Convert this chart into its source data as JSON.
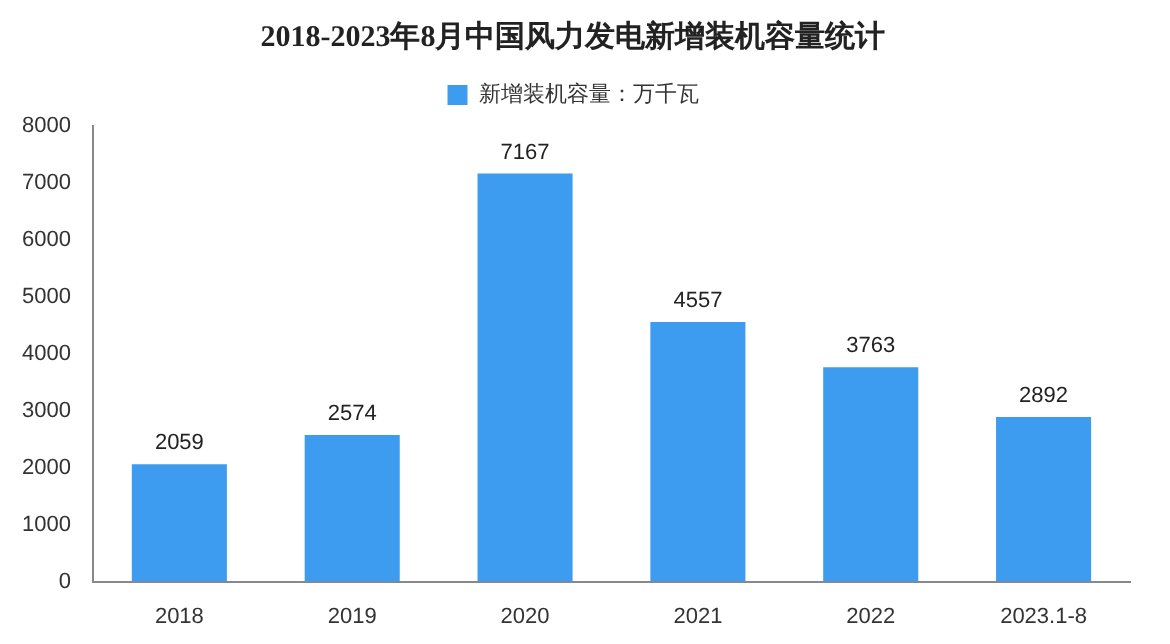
{
  "chart_data": {
    "type": "bar",
    "title": "2018-2023年8月中国风力发电新增装机容量统计",
    "categories": [
      "2018",
      "2019",
      "2020",
      "2021",
      "2022",
      "2023.1-8"
    ],
    "series": [
      {
        "name": "新增装机容量：万千瓦",
        "color": "#3d9cf0",
        "values": [
          2059,
          2574,
          7167,
          4557,
          3763,
          2892
        ]
      }
    ],
    "ylim": [
      0,
      8000
    ],
    "yticks": [
      0,
      1000,
      2000,
      3000,
      4000,
      5000,
      6000,
      7000,
      8000
    ],
    "grid": false,
    "legend": "top",
    "data_labels": true
  }
}
